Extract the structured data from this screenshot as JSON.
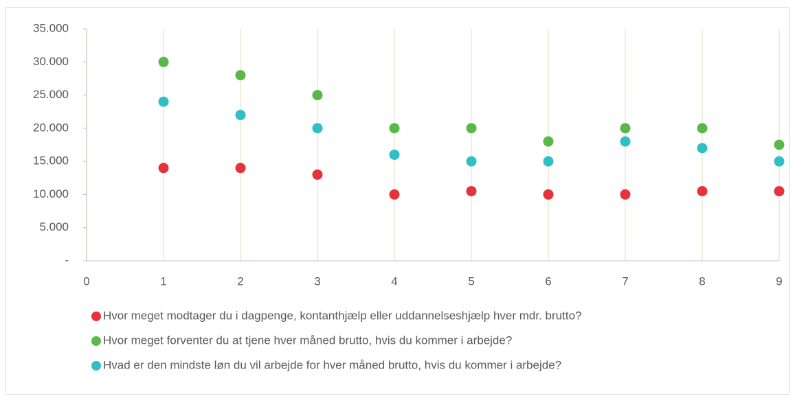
{
  "chart_data": {
    "type": "scatter",
    "x": [
      1,
      2,
      3,
      4,
      5,
      6,
      7,
      8,
      9
    ],
    "series": [
      {
        "name": "Hvor meget modtager du i dagpenge, kontanthjælp eller uddannelseshjælp hver mdr. brutto?",
        "color": "#e5323b",
        "values": [
          14000,
          14000,
          13000,
          10000,
          10500,
          10000,
          10000,
          10500,
          10500
        ]
      },
      {
        "name": "Hvor meget forventer du at tjene hver måned brutto, hvis du kommer i arbejde?",
        "color": "#5ab848",
        "values": [
          30000,
          28000,
          25000,
          20000,
          20000,
          18000,
          20000,
          20000,
          17500
        ]
      },
      {
        "name": "Hvad er den mindste løn du vil arbejde for hver måned brutto, hvis du kommer i arbejde?",
        "color": "#2fbfc4",
        "values": [
          24000,
          22000,
          20000,
          16000,
          15000,
          15000,
          18000,
          17000,
          15000
        ]
      }
    ],
    "xlim": [
      0,
      9
    ],
    "xticks": [
      0,
      1,
      2,
      3,
      4,
      5,
      6,
      7,
      8,
      9
    ],
    "ylim": [
      0,
      35000
    ],
    "yticks": [
      {
        "value": 0,
        "label": "-"
      },
      {
        "value": 5000,
        "label": "5.000"
      },
      {
        "value": 10000,
        "label": "10.000"
      },
      {
        "value": 15000,
        "label": "15.000"
      },
      {
        "value": 20000,
        "label": "20.000"
      },
      {
        "value": 25000,
        "label": "25.000"
      },
      {
        "value": 30000,
        "label": "30.000"
      },
      {
        "value": 35000,
        "label": "35.000"
      }
    ],
    "grid": "x",
    "legend": "bottom"
  }
}
